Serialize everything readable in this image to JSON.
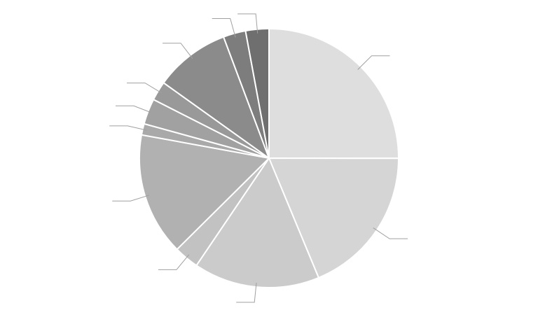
{
  "chart_data": {
    "type": "pie",
    "values": [
      25,
      18.7,
      15.7,
      3.1,
      15.3,
      1.4,
      3.2,
      2.4,
      9.4,
      2.8,
      2.9
    ],
    "colors": [
      "#dedede",
      "#d5d5d5",
      "#cbcbcb",
      "#c2c2c2",
      "#b1b1b1",
      "#a9a9a9",
      "#a1a1a1",
      "#999999",
      "#8b8b8b",
      "#7d7d7d",
      "#6f6f6f"
    ]
  }
}
